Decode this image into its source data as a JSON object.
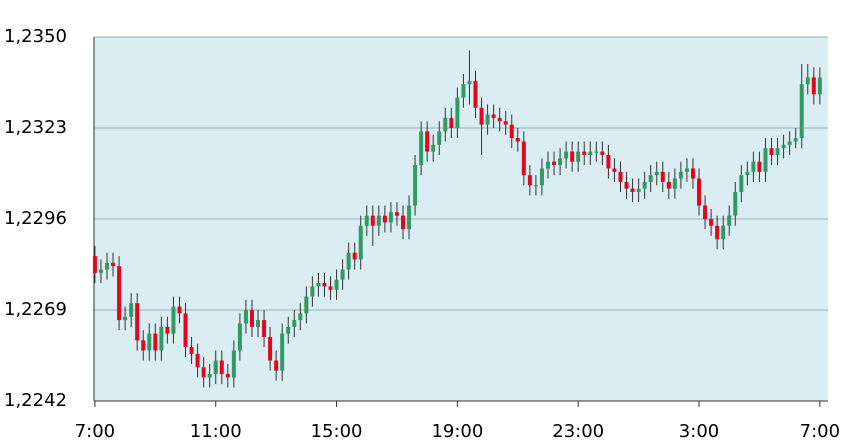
{
  "chart_data": {
    "type": "candlestick",
    "x": [
      0,
      0.2,
      0.4,
      0.6,
      0.8,
      1,
      1.2,
      1.4,
      1.6,
      1.8,
      2,
      2.2,
      2.4,
      2.6,
      2.8,
      3,
      3.2,
      3.4,
      3.6,
      3.8,
      4,
      4.2,
      4.4,
      4.6,
      4.8,
      5,
      5.2,
      5.4,
      5.6,
      5.8,
      6,
      6.2,
      6.4,
      6.6,
      6.8,
      7,
      7.2,
      7.4,
      7.6,
      7.8,
      8,
      8.2,
      8.4,
      8.6,
      8.8,
      9,
      9.2,
      9.4,
      9.6,
      9.8,
      10,
      10.2,
      10.4,
      10.6,
      10.8,
      11,
      11.2,
      11.4,
      11.6,
      11.8,
      12,
      12.2,
      12.4,
      12.6,
      12.8,
      13,
      13.2,
      13.4,
      13.6,
      13.8,
      14,
      14.2,
      14.4,
      14.6,
      14.8,
      15,
      15.2,
      15.4,
      15.6,
      15.8,
      16,
      16.2,
      16.4,
      16.6,
      16.8,
      17,
      17.2,
      17.4,
      17.6,
      17.8,
      18,
      18.2,
      18.4,
      18.6,
      18.8,
      19,
      19.2,
      19.4,
      19.6,
      19.8,
      20,
      20.2,
      20.4,
      20.6,
      20.8,
      21,
      21.2,
      21.4,
      21.6,
      21.8,
      22,
      22.2,
      22.4,
      22.6,
      22.8,
      23,
      23.2,
      23.4,
      23.6,
      23.8,
      24
    ],
    "open": [
      1.2285,
      1.228,
      1.2281,
      1.2283,
      1.2282,
      1.2266,
      1.2267,
      1.2271,
      1.226,
      1.2257,
      1.2262,
      1.2257,
      1.2264,
      1.2262,
      1.227,
      1.2268,
      1.2258,
      1.2256,
      1.2252,
      1.2249,
      1.225,
      1.2254,
      1.225,
      1.2249,
      1.2257,
      1.2265,
      1.2269,
      1.2264,
      1.2266,
      1.2261,
      1.2254,
      1.2251,
      1.2262,
      1.2264,
      1.2266,
      1.2268,
      1.2273,
      1.2276,
      1.2277,
      1.2276,
      1.2275,
      1.2278,
      1.2281,
      1.2286,
      1.2284,
      1.2294,
      1.2297,
      1.2294,
      1.2297,
      1.2295,
      1.2298,
      1.2297,
      1.2293,
      1.23,
      1.2312,
      1.2322,
      1.2316,
      1.2318,
      1.2322,
      1.2326,
      1.2323,
      1.2332,
      1.2336,
      1.2337,
      1.2329,
      1.2324,
      1.2327,
      1.2326,
      1.2325,
      1.2324,
      1.232,
      1.2319,
      1.2309,
      1.2306,
      1.2306,
      1.2311,
      1.2313,
      1.2312,
      1.2314,
      1.2316,
      1.2313,
      1.2316,
      1.2315,
      1.2316,
      1.2316,
      1.2315,
      1.2311,
      1.231,
      1.2307,
      1.2305,
      1.2304,
      1.2305,
      1.2307,
      1.2309,
      1.231,
      1.2307,
      1.2305,
      1.2308,
      1.231,
      1.2311,
      1.2308,
      1.23,
      1.2296,
      1.2294,
      1.229,
      1.2294,
      1.2297,
      1.2304,
      1.2309,
      1.231,
      1.2313,
      1.231,
      1.2317,
      1.2315,
      1.2317,
      1.2318,
      1.2319,
      1.232,
      1.2336,
      1.2338,
      1.2333
    ],
    "high": [
      1.2288,
      1.2284,
      1.2286,
      1.2286,
      1.2285,
      1.227,
      1.2274,
      1.2274,
      1.2263,
      1.2265,
      1.2265,
      1.2267,
      1.2267,
      1.2273,
      1.2273,
      1.2271,
      1.2261,
      1.2259,
      1.2255,
      1.2253,
      1.2257,
      1.2257,
      1.2253,
      1.226,
      1.2268,
      1.2272,
      1.2272,
      1.2269,
      1.2269,
      1.2264,
      1.2257,
      1.2265,
      1.2267,
      1.2269,
      1.2271,
      1.2276,
      1.2279,
      1.228,
      1.228,
      1.2279,
      1.2281,
      1.2284,
      1.2289,
      1.2289,
      1.2297,
      1.23,
      1.23,
      1.23,
      1.23,
      1.2301,
      1.2301,
      1.23,
      1.2303,
      1.2315,
      1.2325,
      1.2325,
      1.2321,
      1.2325,
      1.2329,
      1.2329,
      1.2335,
      1.2339,
      1.2346,
      1.234,
      1.2332,
      1.233,
      1.233,
      1.2329,
      1.2328,
      1.2327,
      1.2323,
      1.2322,
      1.2312,
      1.2309,
      1.2314,
      1.2316,
      1.2316,
      1.2317,
      1.2319,
      1.2319,
      1.2319,
      1.2319,
      1.2319,
      1.2319,
      1.2319,
      1.2318,
      1.2314,
      1.2313,
      1.231,
      1.2308,
      1.2308,
      1.231,
      1.2312,
      1.2313,
      1.2313,
      1.231,
      1.2311,
      1.2313,
      1.2314,
      1.2314,
      1.2311,
      1.2303,
      1.2299,
      1.2297,
      1.2297,
      1.23,
      1.2307,
      1.2312,
      1.2313,
      1.2316,
      1.2316,
      1.232,
      1.232,
      1.232,
      1.2321,
      1.2322,
      1.2323,
      1.2342,
      1.2342,
      1.2341,
      1.2341
    ],
    "low": [
      1.2277,
      1.2277,
      1.2278,
      1.2279,
      1.2263,
      1.2263,
      1.2264,
      1.2257,
      1.2254,
      1.2254,
      1.2254,
      1.2254,
      1.2259,
      1.2259,
      1.2265,
      1.2255,
      1.2253,
      1.2249,
      1.2246,
      1.2246,
      1.2247,
      1.2247,
      1.2246,
      1.2246,
      1.2254,
      1.2262,
      1.2261,
      1.2261,
      1.2258,
      1.2251,
      1.2248,
      1.2248,
      1.2259,
      1.2261,
      1.2263,
      1.2265,
      1.227,
      1.2273,
      1.2273,
      1.2272,
      1.2272,
      1.2275,
      1.2278,
      1.2281,
      1.2281,
      1.2291,
      1.2288,
      1.2291,
      1.2292,
      1.2292,
      1.2294,
      1.229,
      1.229,
      1.2297,
      1.2309,
      1.2313,
      1.2313,
      1.2315,
      1.2319,
      1.232,
      1.232,
      1.2329,
      1.233,
      1.2326,
      1.2315,
      1.2321,
      1.2323,
      1.2322,
      1.2321,
      1.2317,
      1.2316,
      1.2306,
      1.2303,
      1.2303,
      1.2303,
      1.2308,
      1.2309,
      1.2309,
      1.2311,
      1.231,
      1.231,
      1.2312,
      1.2312,
      1.2313,
      1.2312,
      1.2308,
      1.2307,
      1.2304,
      1.2302,
      1.2301,
      1.2301,
      1.2302,
      1.2304,
      1.2306,
      1.2304,
      1.2302,
      1.2302,
      1.2305,
      1.2307,
      1.2305,
      1.2297,
      1.2293,
      1.2291,
      1.2287,
      1.2287,
      1.2291,
      1.2294,
      1.2301,
      1.2306,
      1.2307,
      1.2307,
      1.2307,
      1.2312,
      1.2312,
      1.2314,
      1.2315,
      1.2317,
      1.2317,
      1.2333,
      1.233,
      1.233
    ],
    "close": [
      1.228,
      1.2281,
      1.2283,
      1.2282,
      1.2266,
      1.2267,
      1.2271,
      1.226,
      1.2257,
      1.2262,
      1.2257,
      1.2264,
      1.2262,
      1.227,
      1.2268,
      1.2258,
      1.2256,
      1.2252,
      1.2249,
      1.225,
      1.2254,
      1.225,
      1.2249,
      1.2257,
      1.2265,
      1.2269,
      1.2264,
      1.2266,
      1.2261,
      1.2254,
      1.2251,
      1.2262,
      1.2264,
      1.2266,
      1.2268,
      1.2273,
      1.2276,
      1.2277,
      1.2276,
      1.2275,
      1.2278,
      1.2281,
      1.2286,
      1.2284,
      1.2294,
      1.2297,
      1.2294,
      1.2297,
      1.2295,
      1.2298,
      1.2297,
      1.2293,
      1.23,
      1.2312,
      1.2322,
      1.2316,
      1.2318,
      1.2322,
      1.2326,
      1.2323,
      1.2332,
      1.2336,
      1.2337,
      1.2329,
      1.2324,
      1.2327,
      1.2326,
      1.2325,
      1.2324,
      1.232,
      1.2319,
      1.2309,
      1.2306,
      1.2306,
      1.2311,
      1.2313,
      1.2312,
      1.2314,
      1.2316,
      1.2313,
      1.2316,
      1.2315,
      1.2316,
      1.2316,
      1.2315,
      1.2311,
      1.231,
      1.2307,
      1.2305,
      1.2304,
      1.2305,
      1.2307,
      1.2309,
      1.231,
      1.2307,
      1.2305,
      1.2308,
      1.231,
      1.2311,
      1.2308,
      1.23,
      1.2296,
      1.2294,
      1.229,
      1.2294,
      1.2297,
      1.2304,
      1.2309,
      1.231,
      1.2313,
      1.231,
      1.2317,
      1.2315,
      1.2317,
      1.2318,
      1.2319,
      1.232,
      1.2336,
      1.2338,
      1.2333,
      1.2338
    ],
    "xlim": [
      -0.03,
      24.27
    ],
    "ylim": [
      1.2242,
      1.235
    ],
    "xticks": [
      {
        "value": 0,
        "label": "7:00"
      },
      {
        "value": 4,
        "label": "11:00"
      },
      {
        "value": 8,
        "label": "15:00"
      },
      {
        "value": 12,
        "label": "19:00"
      },
      {
        "value": 16,
        "label": "23:00"
      },
      {
        "value": 20,
        "label": "3:00"
      },
      {
        "value": 24,
        "label": "7:00"
      }
    ],
    "yticks": [
      {
        "value": 1.2242,
        "label": "1,2242"
      },
      {
        "value": 1.2269,
        "label": "1,2269"
      },
      {
        "value": 1.2296,
        "label": "1,2296"
      },
      {
        "value": 1.2323,
        "label": "1,2323"
      },
      {
        "value": 1.235,
        "label": "1,2350"
      }
    ],
    "up_color": "#2f9a62",
    "down_color": "#e3061c",
    "grid": true
  }
}
